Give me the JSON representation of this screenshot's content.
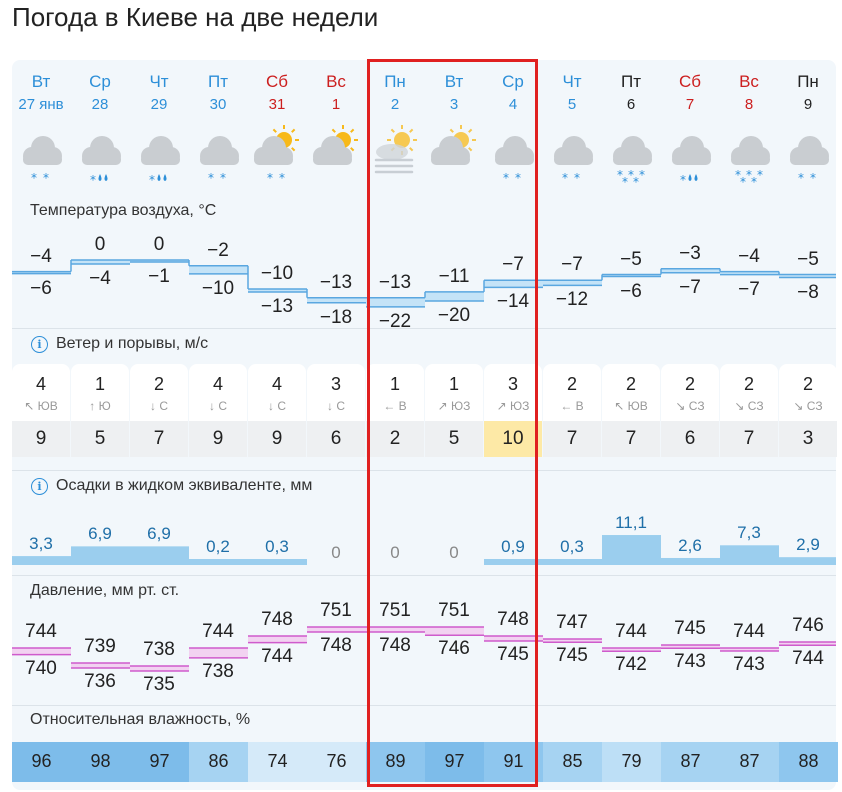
{
  "title": "Погода в Киеве на две недели",
  "days": [
    {
      "dow": "Вт",
      "date": "27 янв",
      "weekend": false,
      "icon": "cloud-snow-icon",
      "precip": "snow2",
      "tmax": "−4",
      "tmin": "−6",
      "wind": "4",
      "wdir": "↖ ЮВ",
      "gust": "9",
      "prec": "3,3",
      "phi": "3,3",
      "pmax": "744",
      "pmin": "740",
      "hum": "96"
    },
    {
      "dow": "Ср",
      "date": "28",
      "weekend": false,
      "icon": "cloud-rain-snow-icon",
      "precip": "mixed",
      "tmax": "0",
      "tmin": "−4",
      "wind": "1",
      "wdir": "↑ Ю",
      "gust": "5",
      "prec": "6,9",
      "pmax": "739",
      "pmin": "736",
      "hum": "98"
    },
    {
      "dow": "Чт",
      "date": "29",
      "weekend": false,
      "icon": "cloud-rain-snow-icon",
      "precip": "mixed",
      "tmax": "0",
      "tmin": "−1",
      "wind": "2",
      "wdir": "↓ С",
      "gust": "7",
      "prec": "6,9",
      "pmax": "738",
      "pmin": "735",
      "hum": "97"
    },
    {
      "dow": "Пт",
      "date": "30",
      "weekend": false,
      "icon": "cloud-snow-icon",
      "precip": "snow2",
      "tmax": "−2",
      "tmin": "−10",
      "wind": "4",
      "wdir": "↓ С",
      "gust": "9",
      "prec": "0,2",
      "pmax": "744",
      "pmin": "738",
      "hum": "86"
    },
    {
      "dow": "Сб",
      "date": "31",
      "weekend": true,
      "icon": "sun-cloud-snow-icon",
      "precip": "snow2",
      "tmax": "−10",
      "tmin": "−13",
      "wind": "4",
      "wdir": "↓ С",
      "gust": "9",
      "prec": "0,3",
      "pmax": "748",
      "pmin": "744",
      "hum": "74"
    },
    {
      "dow": "Вс",
      "date": "1",
      "weekend": true,
      "icon": "sun-cloud-icon",
      "precip": "none",
      "tmax": "−13",
      "tmin": "−18",
      "wind": "3",
      "wdir": "↓ С",
      "gust": "6",
      "prec": "0",
      "pmax": "751",
      "pmin": "748",
      "hum": "76"
    },
    {
      "dow": "Пн",
      "date": "2",
      "weekend": false,
      "icon": "sun-fog-icon",
      "precip": "fog",
      "tmax": "−13",
      "tmin": "−22",
      "wind": "1",
      "wdir": "← В",
      "gust": "2",
      "prec": "0",
      "pmax": "751",
      "pmin": "748",
      "hum": "89"
    },
    {
      "dow": "Вт",
      "date": "3",
      "weekend": false,
      "icon": "sun-cloud-icon",
      "precip": "none",
      "tmax": "−11",
      "tmin": "−20",
      "wind": "1",
      "wdir": "↗ ЮЗ",
      "gust": "5",
      "prec": "0",
      "pmax": "751",
      "pmin": "746",
      "hum": "97"
    },
    {
      "dow": "Ср",
      "date": "4",
      "weekend": false,
      "icon": "cloud-snow-icon",
      "precip": "snow2",
      "tmax": "−7",
      "tmin": "−14",
      "wind": "3",
      "wdir": "↗ ЮЗ",
      "gust": "10",
      "prec": "0,9",
      "pmax": "748",
      "pmin": "745",
      "hum": "91"
    },
    {
      "dow": "Чт",
      "date": "5",
      "weekend": false,
      "icon": "cloud-snow-icon",
      "precip": "snow2",
      "tmax": "−7",
      "tmin": "−12",
      "wind": "2",
      "wdir": "← В",
      "gust": "7",
      "prec": "0,3",
      "pmax": "747",
      "pmin": "745",
      "hum": "85"
    },
    {
      "dow": "Пт",
      "date": "6",
      "weekend": false,
      "icon": "cloud-snow-icon",
      "precip": "snow3",
      "tmax": "−5",
      "tmin": "−6",
      "wind": "2",
      "wdir": "↖ ЮВ",
      "gust": "7",
      "prec": "11,1",
      "pmax": "744",
      "pmin": "742",
      "hum": "79"
    },
    {
      "dow": "Сб",
      "date": "7",
      "weekend": true,
      "icon": "cloud-rain-snow-icon",
      "precip": "mixed",
      "tmax": "−3",
      "tmin": "−7",
      "wind": "2",
      "wdir": "↘ СЗ",
      "gust": "6",
      "prec": "2,6",
      "pmax": "745",
      "pmin": "743",
      "hum": "87"
    },
    {
      "dow": "Вс",
      "date": "8",
      "weekend": true,
      "icon": "cloud-snow-icon",
      "precip": "snow3",
      "tmax": "−4",
      "tmin": "−7",
      "wind": "2",
      "wdir": "↘ СЗ",
      "gust": "7",
      "prec": "7,3",
      "pmax": "744",
      "pmin": "743",
      "hum": "87"
    },
    {
      "dow": "Пн",
      "date": "9",
      "weekend": false,
      "icon": "cloud-snow-icon",
      "precip": "snow2",
      "tmax": "−5",
      "tmin": "−8",
      "wind": "2",
      "wdir": "↘ СЗ",
      "gust": "3",
      "prec": "2,9",
      "pmax": "746",
      "pmin": "744",
      "hum": "88"
    }
  ],
  "sections": {
    "temperature": "Температура воздуха, °С",
    "wind": "Ветер и порывы, м/с",
    "precip": "Осадки в жидком эквиваленте, мм",
    "pressure": "Давление, мм рт. ст.",
    "humidity": "Относительная влажность, %"
  },
  "info_glyph": "i",
  "colors": {
    "weekday": "#2d8fd8",
    "weekend": "#cc1f1f",
    "monday": "#222222",
    "highlight": "#e02020",
    "temp_line": "#5aa7e0",
    "pressure_line": "#cf5bcc",
    "precip_fill": "#7ec0ea",
    "gust_max": "#fde9a6"
  }
}
